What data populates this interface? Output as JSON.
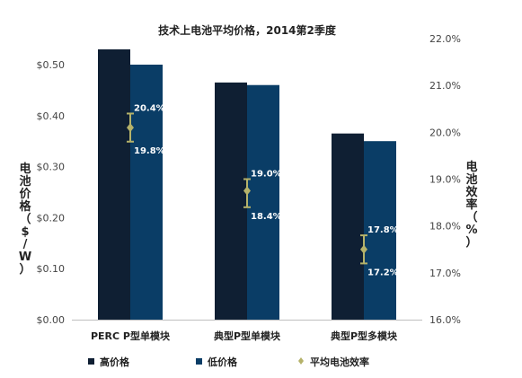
{
  "chart_data": {
    "type": "bar",
    "title": "技术上电池平均价格，2014第2季度",
    "categories": [
      "PERC P型单模块",
      "典型P型单模块",
      "典型P型多模块"
    ],
    "series": [
      {
        "name": "高价格",
        "axis": "left",
        "values": [
          0.53,
          0.465,
          0.365
        ],
        "color": "#0f1f33"
      },
      {
        "name": "低价格",
        "axis": "left",
        "values": [
          0.5,
          0.46,
          0.35
        ],
        "color": "#0a3d66"
      }
    ],
    "efficiency": {
      "name": "平均电池效率",
      "axis": "right",
      "color": "#b5b26a",
      "mean": [
        20.1,
        18.75,
        17.5
      ],
      "high": [
        20.4,
        19.0,
        17.8
      ],
      "low": [
        19.8,
        18.4,
        17.2
      ],
      "high_labels": [
        "20.4%",
        "19.0%",
        "17.8%"
      ],
      "low_labels": [
        "19.8%",
        "18.4%",
        "17.2%"
      ]
    },
    "ylabel_left": [
      "电",
      "池",
      "价",
      "格",
      "（",
      "$",
      "/",
      "W",
      "）"
    ],
    "ylabel_right": [
      "电",
      "池",
      "效",
      "率",
      "（",
      "%",
      "）"
    ],
    "ylim_left": [
      0,
      0.5
    ],
    "yticks_left": [
      "$0.00",
      "$0.10",
      "$0.20",
      "$0.30",
      "$0.40",
      "$0.50"
    ],
    "ylim_right": [
      16,
      22
    ],
    "yticks_right": [
      "16.0%",
      "17.0%",
      "18.0%",
      "19.0%",
      "20.0%",
      "21.0%",
      "22.0%"
    ],
    "legend": [
      "高价格",
      "低价格",
      "平均电池效率"
    ],
    "legend_position": "bottom"
  }
}
